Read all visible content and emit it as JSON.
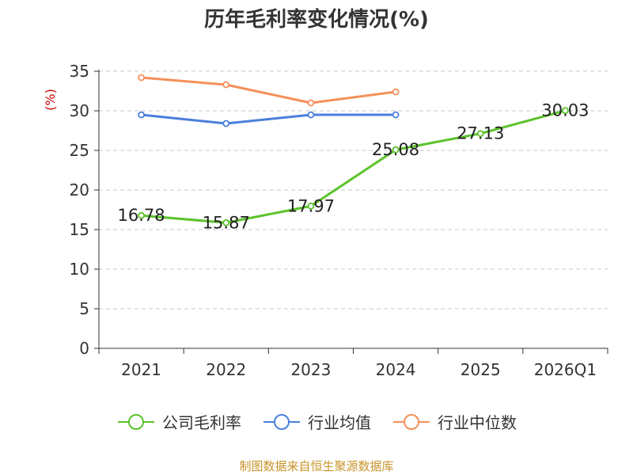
{
  "chart_data": {
    "type": "line",
    "title": "历年毛利率变化情况(%)",
    "ylabel": "(%)",
    "xlabel": "",
    "categories": [
      "2021",
      "2022",
      "2023",
      "2024",
      "2025",
      "2026Q1"
    ],
    "ylim": [
      0,
      35
    ],
    "yticks": [
      0,
      5,
      10,
      15,
      20,
      25,
      30,
      35
    ],
    "grid": true,
    "legend_position": "bottom",
    "series": [
      {
        "name": "公司毛利率",
        "color": "#5cc22a",
        "values": [
          16.78,
          15.87,
          17.97,
          25.08,
          27.13,
          30.03
        ],
        "show_labels": true
      },
      {
        "name": "行业均值",
        "color": "#4a7fdc",
        "values": [
          29.5,
          28.4,
          29.5,
          29.5,
          null,
          null
        ],
        "show_labels": false
      },
      {
        "name": "行业中位数",
        "color": "#f5905a",
        "values": [
          34.2,
          33.3,
          31.0,
          32.4,
          null,
          null
        ],
        "show_labels": false
      }
    ]
  },
  "source": "制图数据来自恒生聚源数据库"
}
